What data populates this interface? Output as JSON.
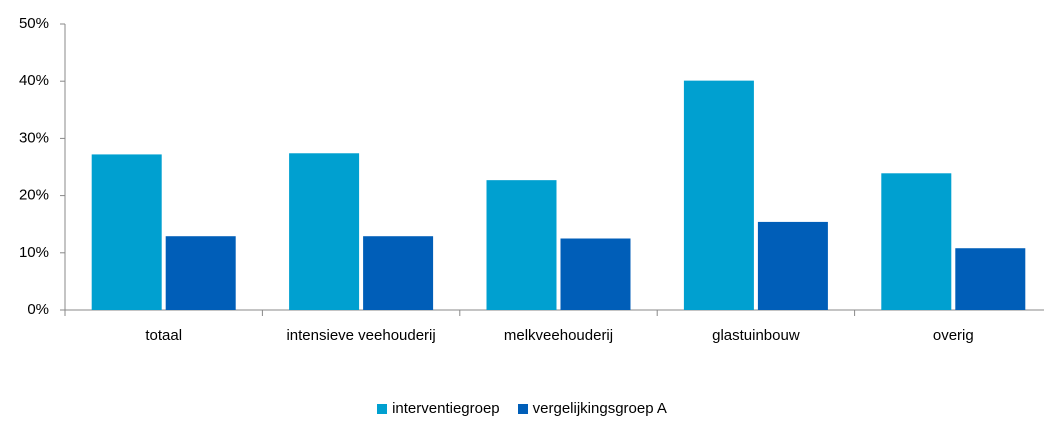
{
  "chart_data": {
    "type": "bar",
    "categories": [
      "totaal",
      "intensieve veehouderij",
      "melkveehouderij",
      "glastuinbouw",
      "overig"
    ],
    "series": [
      {
        "name": "interventiegroep",
        "color": "#00a0d0",
        "values": [
          27.2,
          27.4,
          22.7,
          40.1,
          23.9
        ]
      },
      {
        "name": "vergelijkingsgroep A",
        "color": "#005eb8",
        "values": [
          12.9,
          12.9,
          12.5,
          15.4,
          10.8
        ]
      }
    ],
    "ylim": [
      0,
      50
    ],
    "yticks": [
      {
        "value": 0,
        "label": "0%"
      },
      {
        "value": 10,
        "label": "10%"
      },
      {
        "value": 20,
        "label": "20%"
      },
      {
        "value": 30,
        "label": "30%"
      },
      {
        "value": 40,
        "label": "40%"
      },
      {
        "value": 50,
        "label": "50%"
      }
    ],
    "legend": "bottom"
  }
}
